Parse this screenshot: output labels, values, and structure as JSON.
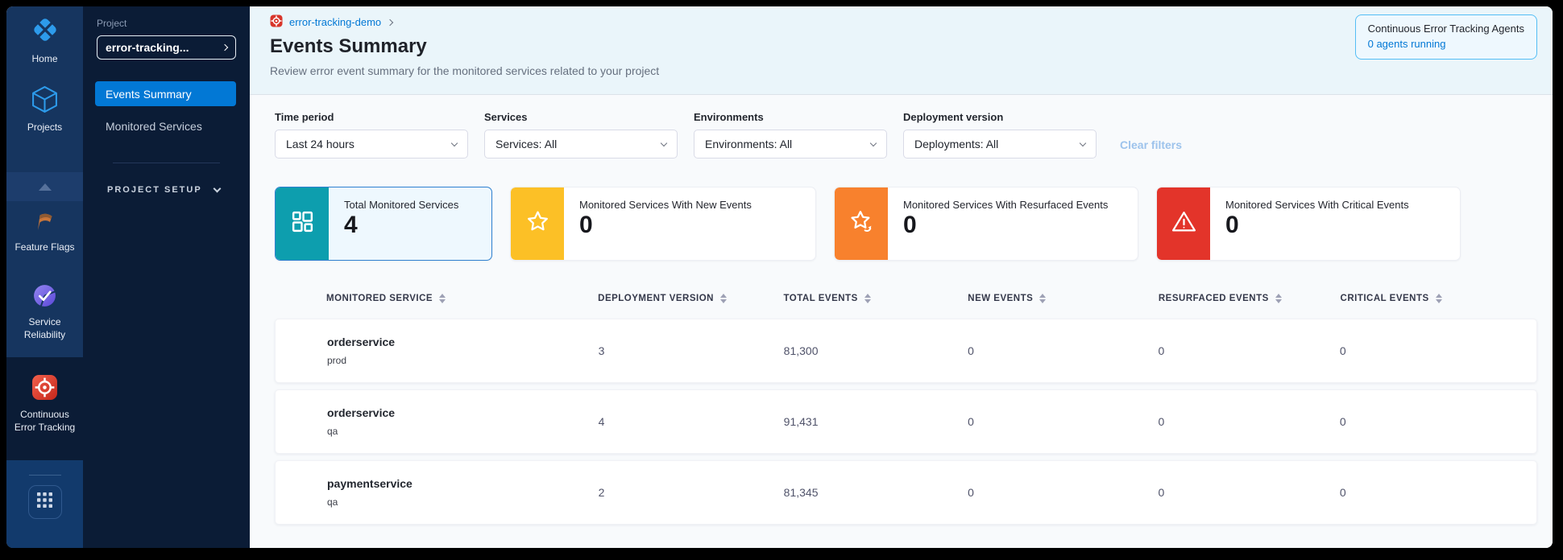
{
  "colors": {
    "primary_blue": "#0278d5",
    "sidebar_dark": "#0b1c36",
    "sidebar_light": "#16355f",
    "header_band": "#eaf5fa",
    "selected_card_border": "#2f80d0"
  },
  "sidebar": {
    "modules": [
      {
        "label": "Home",
        "icon": "home",
        "active": false
      },
      {
        "label": "Projects",
        "icon": "projects",
        "active": false
      },
      {
        "label": "Feature Flags",
        "icon": "feature-flags",
        "active": false
      },
      {
        "label": "Service Reliability",
        "icon": "service-reliability",
        "active": false
      },
      {
        "label": "Continuous Error Tracking",
        "icon": "error-tracking",
        "active": true
      }
    ],
    "apps_button_icon": "apps-grid"
  },
  "project_nav": {
    "section_label": "Project",
    "selector_value": "error-tracking...",
    "items": [
      {
        "label": "Events Summary",
        "active": true
      },
      {
        "label": "Monitored Services",
        "active": false
      }
    ],
    "setup_label": "PROJECT SETUP"
  },
  "header": {
    "breadcrumb": "error-tracking-demo",
    "title": "Events Summary",
    "subtitle": "Review error event summary for the monitored services related to your project",
    "agents_panel": {
      "title": "Continuous Error Tracking Agents",
      "status": "0 agents running"
    }
  },
  "filters": {
    "fields": [
      {
        "label": "Time period",
        "value": "Last 24 hours"
      },
      {
        "label": "Services",
        "value": "Services: All"
      },
      {
        "label": "Environments",
        "value": "Environments: All"
      },
      {
        "label": "Deployment version",
        "value": "Deployments: All"
      }
    ],
    "clear_label": "Clear filters"
  },
  "summary_cards": [
    {
      "label": "Total Monitored Services",
      "value": "4",
      "color": "#0d9eae",
      "icon": "grid",
      "selected": true
    },
    {
      "label": "Monitored Services With New Events",
      "value": "0",
      "color": "#fcc026",
      "icon": "star",
      "selected": false
    },
    {
      "label": "Monitored Services With Resurfaced Events",
      "value": "0",
      "color": "#f8812d",
      "icon": "star-refresh",
      "selected": false
    },
    {
      "label": "Monitored Services With Critical Events",
      "value": "0",
      "color": "#e3342a",
      "icon": "warning",
      "selected": false
    }
  ],
  "table": {
    "columns": [
      "MONITORED SERVICE",
      "DEPLOYMENT VERSION",
      "TOTAL EVENTS",
      "NEW EVENTS",
      "RESURFACED EVENTS",
      "CRITICAL EVENTS"
    ],
    "rows": [
      {
        "service": "orderservice",
        "environment": "prod",
        "deployment_version": "3",
        "total_events": "81,300",
        "new_events": "0",
        "resurfaced_events": "0",
        "critical_events": "0"
      },
      {
        "service": "orderservice",
        "environment": "qa",
        "deployment_version": "4",
        "total_events": "91,431",
        "new_events": "0",
        "resurfaced_events": "0",
        "critical_events": "0"
      },
      {
        "service": "paymentservice",
        "environment": "qa",
        "deployment_version": "2",
        "total_events": "81,345",
        "new_events": "0",
        "resurfaced_events": "0",
        "critical_events": "0"
      }
    ]
  }
}
